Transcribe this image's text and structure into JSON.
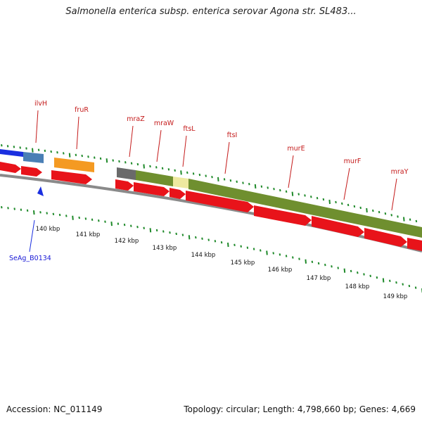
{
  "title": "Salmonella enterica subsp. enterica serovar Agona str. SL483...",
  "footer": {
    "accession": "Accession: NC_011149",
    "topology": "Topology: circular; Length: 4,798,660 bp; Genes: 4,669"
  },
  "gene_labels": [
    {
      "name": "ilvH"
    },
    {
      "name": "fruR"
    },
    {
      "name": "mraZ"
    },
    {
      "name": "mraW"
    },
    {
      "name": "ftsL"
    },
    {
      "name": "ftsI"
    },
    {
      "name": "murE"
    },
    {
      "name": "murF"
    },
    {
      "name": "mraY"
    }
  ],
  "kbp_ticks": [
    "140 kbp",
    "141 kbp",
    "142 kbp",
    "143 kbp",
    "144 kbp",
    "145 kbp",
    "146 kbp",
    "147 kbp",
    "148 kbp",
    "149 kbp"
  ],
  "locus_label": "SeAg_B0134",
  "colors": {
    "cds": "#e8131a",
    "tick": "#1f8a2a",
    "backbone": "#8a8a8a",
    "title_text": "#222222",
    "gene_label": "#c41a1a",
    "locus_label": "#1a1ad6",
    "blue_feature": "#1a2fe0",
    "steel_feature": "#4a7fb5",
    "orange_feature": "#f49a22",
    "olive_feature": "#6f8f2f",
    "yellow_feature": "#eee9a0",
    "gray_feature": "#6a6a6a"
  }
}
